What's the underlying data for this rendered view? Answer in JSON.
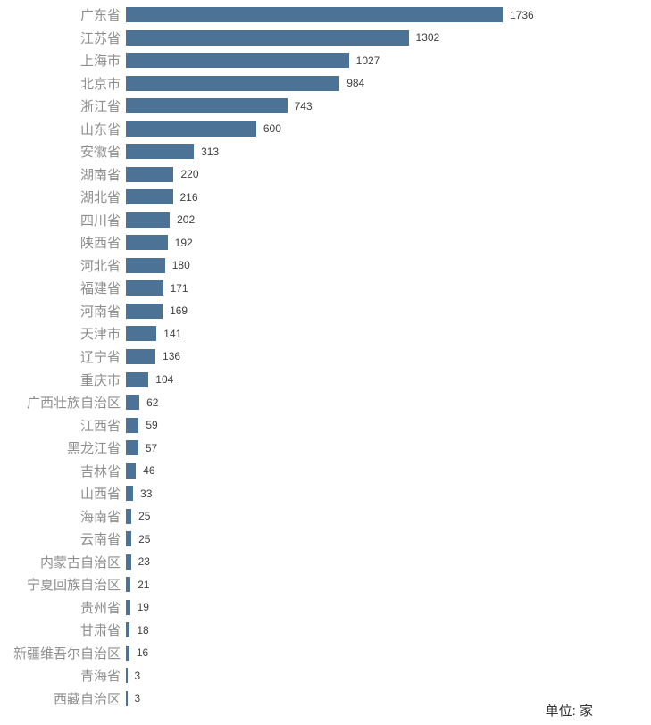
{
  "chart_data": {
    "type": "bar",
    "orientation": "horizontal",
    "title": "",
    "xlabel": "",
    "ylabel": "",
    "unit_label": "单位: 家",
    "xlim": [
      0,
      1736
    ],
    "grid": false,
    "legend": false,
    "bar_color": "#4C7396",
    "category_label_color": "#8e8e8e",
    "value_label_color": "#404040",
    "categories": [
      "广东省",
      "江苏省",
      "上海市",
      "北京市",
      "浙江省",
      "山东省",
      "安徽省",
      "湖南省",
      "湖北省",
      "四川省",
      "陕西省",
      "河北省",
      "福建省",
      "河南省",
      "天津市",
      "辽宁省",
      "重庆市",
      "广西壮族自治区",
      "江西省",
      "黑龙江省",
      "吉林省",
      "山西省",
      "海南省",
      "云南省",
      "内蒙古自治区",
      "宁夏回族自治区",
      "贵州省",
      "甘肃省",
      "新疆维吾尔自治区",
      "青海省",
      "西藏自治区"
    ],
    "values": [
      1736,
      1302,
      1027,
      984,
      743,
      600,
      313,
      220,
      216,
      202,
      192,
      180,
      171,
      169,
      141,
      136,
      104,
      62,
      59,
      57,
      46,
      33,
      25,
      25,
      23,
      21,
      19,
      18,
      16,
      3,
      3
    ]
  }
}
